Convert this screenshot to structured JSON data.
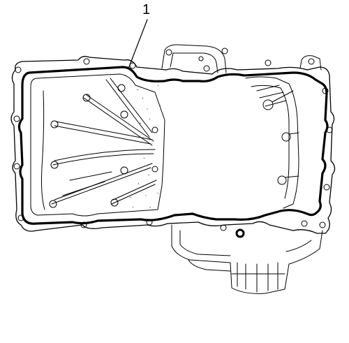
{
  "diagram": {
    "callout": {
      "number": "1"
    },
    "part": "oil-pan-gasket"
  }
}
